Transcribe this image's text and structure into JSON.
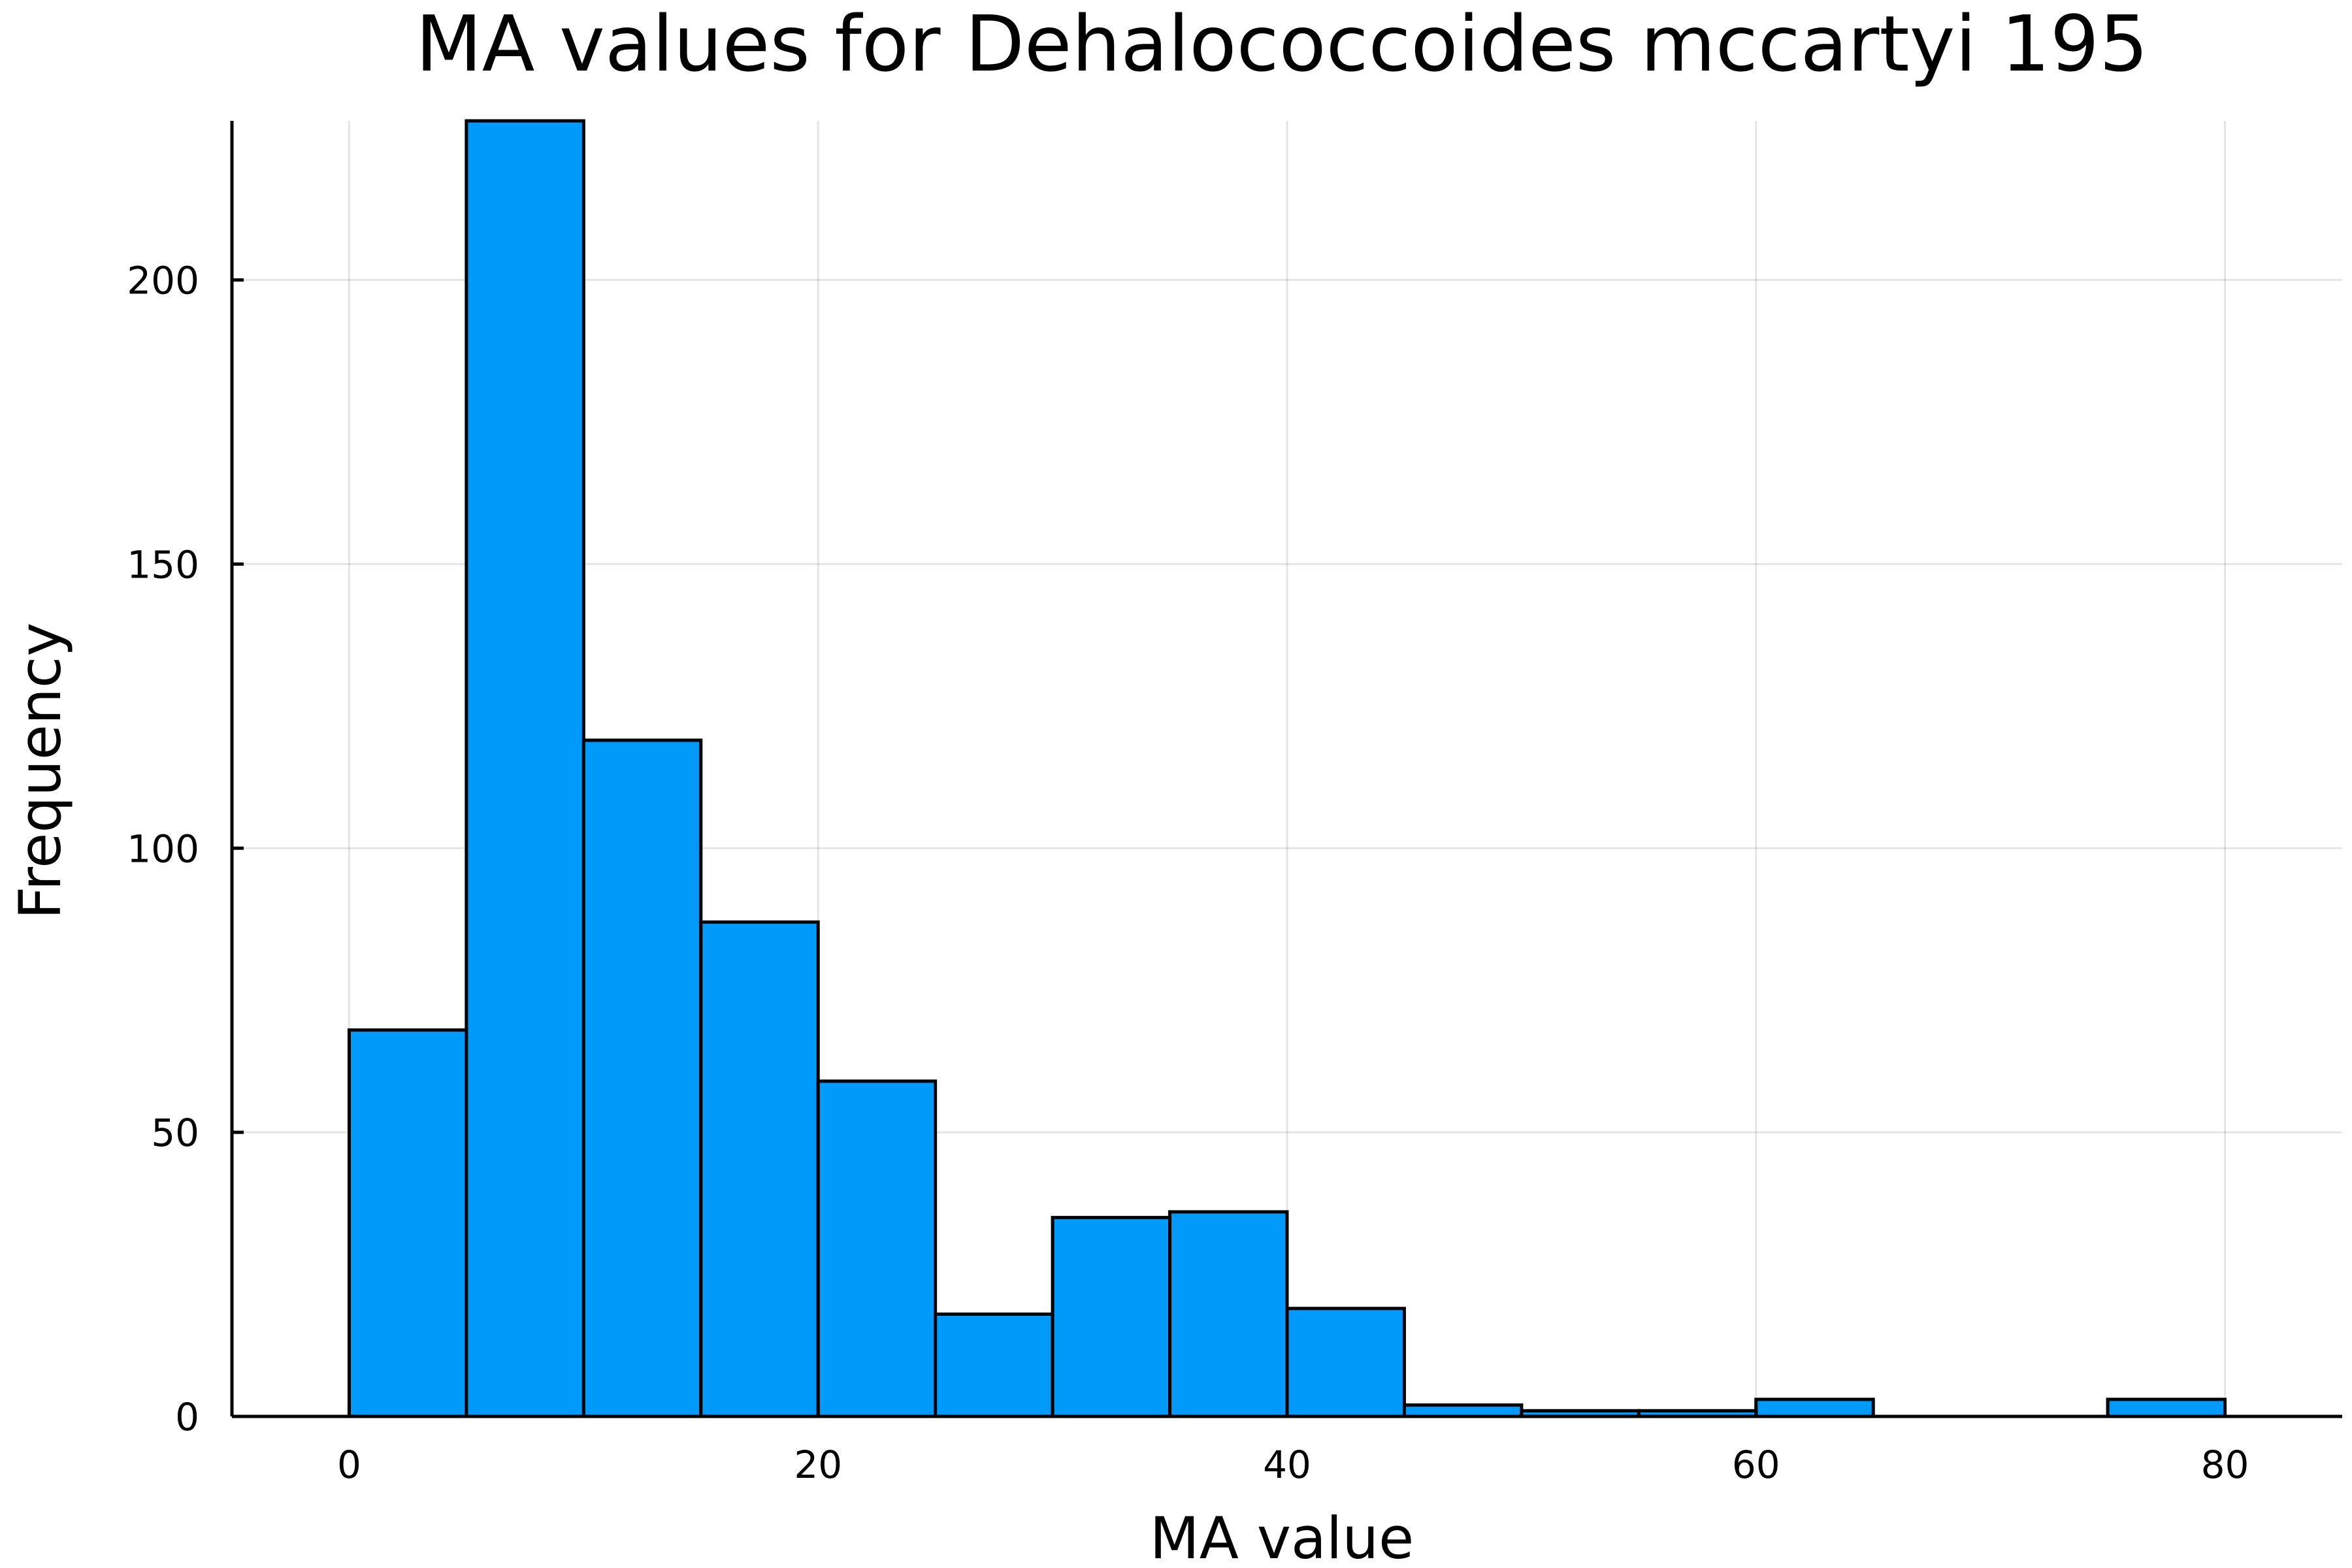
{
  "chart_data": {
    "type": "bar",
    "title": "MA values for Dehalococcoides mccartyi 195",
    "xlabel": "MA value",
    "ylabel": "Frequency",
    "bar_color": "#009AFA",
    "grid": true,
    "legend": "none",
    "xlim": [
      -5,
      85
    ],
    "ylim": [
      0,
      228
    ],
    "xticks": [
      0,
      20,
      40,
      60,
      80
    ],
    "xtick_labels": [
      "0",
      "20",
      "40",
      "60",
      "80"
    ],
    "yticks": [
      0,
      50,
      100,
      150,
      200
    ],
    "ytick_labels": [
      "0",
      "50",
      "100",
      "150",
      "200"
    ],
    "bin_edges": [
      0,
      5,
      10,
      15,
      20,
      25,
      30,
      35,
      40,
      45,
      50,
      55,
      60,
      65,
      70,
      75,
      80
    ],
    "values": [
      68,
      228,
      119,
      87,
      59,
      18,
      35,
      36,
      19,
      2,
      1,
      1,
      3,
      0,
      0,
      3
    ]
  }
}
